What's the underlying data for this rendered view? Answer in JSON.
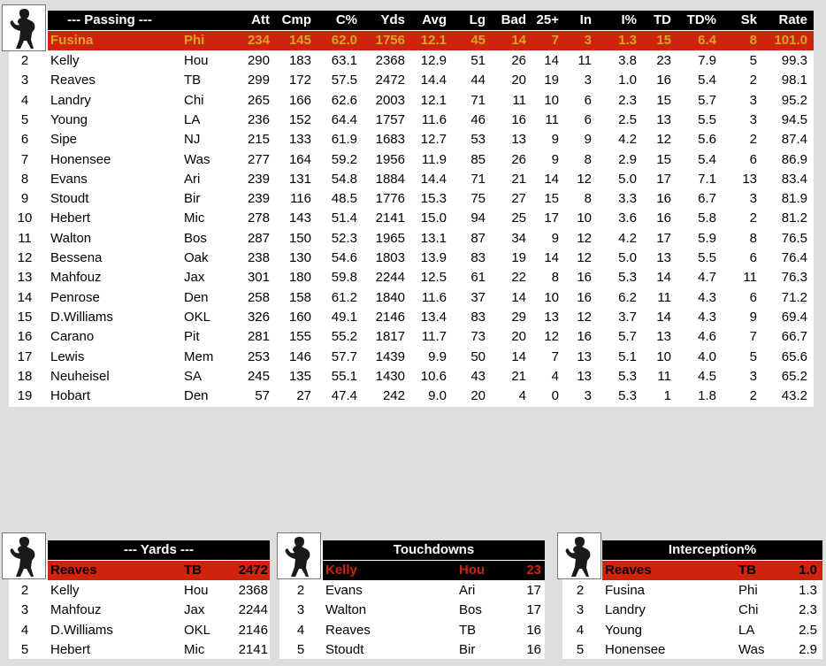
{
  "colors": {
    "header_bg": "#000000",
    "header_text": "#ffffff",
    "lead_red": "#d0230c",
    "lead_gold": "#d8a42a",
    "background": "#dedede"
  },
  "passing": {
    "title": "--- Passing ---",
    "columns": [
      "Att",
      "Cmp",
      "C%",
      "Yds",
      "Avg",
      "Lg",
      "Bad",
      "25+",
      "In",
      "I%",
      "TD",
      "TD%",
      "Sk",
      "Rate"
    ],
    "rows": [
      [
        "",
        "Fusina",
        "Phi",
        "234",
        "145",
        "62.0",
        "1756",
        "12.1",
        "45",
        "14",
        "7",
        "3",
        "1.3",
        "15",
        "6.4",
        "8",
        "101.0"
      ],
      [
        "2",
        "Kelly",
        "Hou",
        "290",
        "183",
        "63.1",
        "2368",
        "12.9",
        "51",
        "26",
        "14",
        "11",
        "3.8",
        "23",
        "7.9",
        "5",
        "99.3"
      ],
      [
        "3",
        "Reaves",
        "TB",
        "299",
        "172",
        "57.5",
        "2472",
        "14.4",
        "44",
        "20",
        "19",
        "3",
        "1.0",
        "16",
        "5.4",
        "2",
        "98.1"
      ],
      [
        "4",
        "Landry",
        "Chi",
        "265",
        "166",
        "62.6",
        "2003",
        "12.1",
        "71",
        "11",
        "10",
        "6",
        "2.3",
        "15",
        "5.7",
        "3",
        "95.2"
      ],
      [
        "5",
        "Young",
        "LA",
        "236",
        "152",
        "64.4",
        "1757",
        "11.6",
        "46",
        "16",
        "11",
        "6",
        "2.5",
        "13",
        "5.5",
        "3",
        "94.5"
      ],
      [
        "6",
        "Sipe",
        "NJ",
        "215",
        "133",
        "61.9",
        "1683",
        "12.7",
        "53",
        "13",
        "9",
        "9",
        "4.2",
        "12",
        "5.6",
        "2",
        "87.4"
      ],
      [
        "7",
        "Honensee",
        "Was",
        "277",
        "164",
        "59.2",
        "1956",
        "11.9",
        "85",
        "26",
        "9",
        "8",
        "2.9",
        "15",
        "5.4",
        "6",
        "86.9"
      ],
      [
        "8",
        "Evans",
        "Ari",
        "239",
        "131",
        "54.8",
        "1884",
        "14.4",
        "71",
        "21",
        "14",
        "12",
        "5.0",
        "17",
        "7.1",
        "13",
        "83.4"
      ],
      [
        "9",
        "Stoudt",
        "Bir",
        "239",
        "116",
        "48.5",
        "1776",
        "15.3",
        "75",
        "27",
        "15",
        "8",
        "3.3",
        "16",
        "6.7",
        "3",
        "81.9"
      ],
      [
        "10",
        "Hebert",
        "Mic",
        "278",
        "143",
        "51.4",
        "2141",
        "15.0",
        "94",
        "25",
        "17",
        "10",
        "3.6",
        "16",
        "5.8",
        "2",
        "81.2"
      ],
      [
        "11",
        "Walton",
        "Bos",
        "287",
        "150",
        "52.3",
        "1965",
        "13.1",
        "87",
        "34",
        "9",
        "12",
        "4.2",
        "17",
        "5.9",
        "8",
        "76.5"
      ],
      [
        "12",
        "Bessena",
        "Oak",
        "238",
        "130",
        "54.6",
        "1803",
        "13.9",
        "83",
        "19",
        "14",
        "12",
        "5.0",
        "13",
        "5.5",
        "6",
        "76.4"
      ],
      [
        "13",
        "Mahfouz",
        "Jax",
        "301",
        "180",
        "59.8",
        "2244",
        "12.5",
        "61",
        "22",
        "8",
        "16",
        "5.3",
        "14",
        "4.7",
        "11",
        "76.3"
      ],
      [
        "14",
        "Penrose",
        "Den",
        "258",
        "158",
        "61.2",
        "1840",
        "11.6",
        "37",
        "14",
        "10",
        "16",
        "6.2",
        "11",
        "4.3",
        "6",
        "71.2"
      ],
      [
        "15",
        "D.Williams",
        "OKL",
        "326",
        "160",
        "49.1",
        "2146",
        "13.4",
        "83",
        "29",
        "13",
        "12",
        "3.7",
        "14",
        "4.3",
        "9",
        "69.4"
      ],
      [
        "16",
        "Carano",
        "Pit",
        "281",
        "155",
        "55.2",
        "1817",
        "11.7",
        "73",
        "20",
        "12",
        "16",
        "5.7",
        "13",
        "4.6",
        "7",
        "66.7"
      ],
      [
        "17",
        "Lewis",
        "Mem",
        "253",
        "146",
        "57.7",
        "1439",
        "9.9",
        "50",
        "14",
        "7",
        "13",
        "5.1",
        "10",
        "4.0",
        "5",
        "65.6"
      ],
      [
        "18",
        "Neuheisel",
        "SA",
        "245",
        "135",
        "55.1",
        "1430",
        "10.6",
        "43",
        "21",
        "4",
        "13",
        "5.3",
        "11",
        "4.5",
        "3",
        "65.2"
      ],
      [
        "19",
        "Hobart",
        "Den",
        "57",
        "27",
        "47.4",
        "242",
        "9.0",
        "20",
        "4",
        "0",
        "3",
        "5.3",
        "1",
        "1.8",
        "2",
        "43.2"
      ]
    ]
  },
  "leaders": [
    {
      "title": "--- Yards ---",
      "rows": [
        [
          "",
          "Reaves",
          "TB",
          "2472"
        ],
        [
          "2",
          "Kelly",
          "Hou",
          "2368"
        ],
        [
          "3",
          "Mahfouz",
          "Jax",
          "2244"
        ],
        [
          "4",
          "D.Williams",
          "OKL",
          "2146"
        ],
        [
          "5",
          "Hebert",
          "Mic",
          "2141"
        ]
      ]
    },
    {
      "title": "Touchdowns",
      "rows": [
        [
          "",
          "Kelly",
          "Hou",
          "23"
        ],
        [
          "2",
          "Evans",
          "Ari",
          "17"
        ],
        [
          "3",
          "Walton",
          "Bos",
          "17"
        ],
        [
          "4",
          "Reaves",
          "TB",
          "16"
        ],
        [
          "5",
          "Stoudt",
          "Bir",
          "16"
        ]
      ]
    },
    {
      "title": "Interception%",
      "rows": [
        [
          "",
          "Reaves",
          "TB",
          "1.0"
        ],
        [
          "2",
          "Fusina",
          "Phi",
          "1.3"
        ],
        [
          "3",
          "Landry",
          "Chi",
          "2.3"
        ],
        [
          "4",
          "Young",
          "LA",
          "2.5"
        ],
        [
          "5",
          "Honensee",
          "Was",
          "2.9"
        ]
      ]
    }
  ]
}
